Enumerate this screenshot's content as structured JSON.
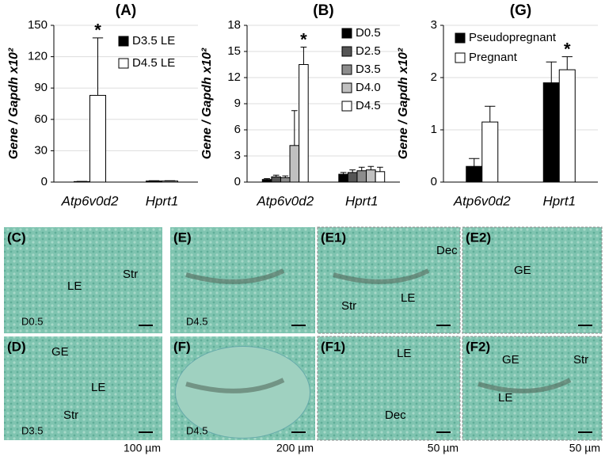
{
  "chart_data": [
    {
      "type": "bar",
      "title": "(A)",
      "ylabel": "Gene / Gapdh x10²",
      "categories": [
        "Atp6v0d2",
        "Hprt1"
      ],
      "series": [
        {
          "name": "D3.5 LE",
          "color": "#000000",
          "values": [
            0.5,
            1
          ],
          "errors": [
            0.2,
            0.3
          ]
        },
        {
          "name": "D4.5 LE",
          "color": "#ffffff",
          "values": [
            83,
            1
          ],
          "errors": [
            55,
            0.3
          ]
        }
      ],
      "ylim": [
        0,
        150
      ],
      "yticks": [
        0,
        30,
        60,
        90,
        120,
        150
      ],
      "grid": true,
      "legend": "upper right",
      "annotation": "*"
    },
    {
      "type": "bar",
      "title": "(B)",
      "ylabel": "Gene / Gapdh x10²",
      "categories": [
        "Atp6v0d2",
        "Hprt1"
      ],
      "series": [
        {
          "name": "D0.5",
          "color": "#000000",
          "values": [
            0.3,
            0.9
          ],
          "errors": [
            0.1,
            0.2
          ]
        },
        {
          "name": "D2.5",
          "color": "#555555",
          "values": [
            0.6,
            1.1
          ],
          "errors": [
            0.2,
            0.3
          ]
        },
        {
          "name": "D3.5",
          "color": "#8c8c8c",
          "values": [
            0.5,
            1.3
          ],
          "errors": [
            0.2,
            0.4
          ]
        },
        {
          "name": "D4.0",
          "color": "#c0c0c0",
          "values": [
            4.2,
            1.4
          ],
          "errors": [
            4,
            0.4
          ]
        },
        {
          "name": "D4.5",
          "color": "#ffffff",
          "values": [
            13.5,
            1.2
          ],
          "errors": [
            2,
            0.5
          ]
        }
      ],
      "ylim": [
        0,
        18
      ],
      "yticks": [
        0,
        3,
        6,
        9,
        12,
        15,
        18
      ],
      "grid": true,
      "legend": "right",
      "annotation": "*"
    },
    {
      "type": "bar",
      "title": "(G)",
      "ylabel": "Gene / Gapdh x10²",
      "categories": [
        "Atp6v0d2",
        "Hprt1"
      ],
      "series": [
        {
          "name": "Pseudopregnant",
          "color": "#000000",
          "values": [
            0.3,
            1.9
          ],
          "errors": [
            0.15,
            0.4
          ]
        },
        {
          "name": "Pregnant",
          "color": "#ffffff",
          "values": [
            1.15,
            2.15
          ],
          "errors": [
            0.3,
            0.25
          ]
        }
      ],
      "ylim": [
        0,
        3
      ],
      "yticks": [
        0,
        1,
        2,
        3
      ],
      "grid": true,
      "legend": "upper left",
      "annotation": "*"
    }
  ],
  "panels": [
    {
      "label": "(C)",
      "texts": [
        "Str",
        "LE",
        "D0.5"
      ]
    },
    {
      "label": "(E)",
      "texts": [
        "D4.5"
      ]
    },
    {
      "label": "(E1)",
      "texts": [
        "Dec",
        "Str",
        "LE"
      ]
    },
    {
      "label": "(E2)",
      "texts": [
        "GE"
      ]
    },
    {
      "label": "(D)",
      "texts": [
        "GE",
        "LE",
        "Str",
        "D3.5"
      ]
    },
    {
      "label": "(F)",
      "texts": [
        "D4.5"
      ]
    },
    {
      "label": "(F1)",
      "texts": [
        "LE",
        "Dec"
      ]
    },
    {
      "label": "(F2)",
      "texts": [
        "GE",
        "Str",
        "LE"
      ]
    }
  ],
  "scale_labels": [
    "100 µm",
    "200 µm",
    "50 µm",
    "50 µm"
  ]
}
